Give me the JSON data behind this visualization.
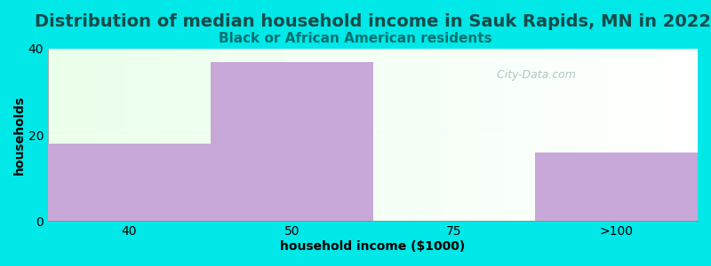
{
  "title": "Distribution of median household income in Sauk Rapids, MN in 2022",
  "subtitle": "Black or African American residents",
  "xlabel": "household income ($1000)",
  "ylabel": "households",
  "categories": [
    "40",
    "50",
    "75",
    ">100"
  ],
  "values": [
    18,
    37,
    0,
    16
  ],
  "bar_color": "#c8a8d8",
  "bar_edge_color": "#c8a8d8",
  "background_color": "#00e8e8",
  "ylim": [
    0,
    40
  ],
  "yticks": [
    0,
    20,
    40
  ],
  "title_fontsize": 14,
  "subtitle_fontsize": 11,
  "axis_label_fontsize": 10,
  "watermark_text": "  City-Data.com",
  "watermark_color": "#a0bcbc",
  "title_color": "#1a4a4a",
  "subtitle_color": "#007070",
  "bar_width": 1.0
}
